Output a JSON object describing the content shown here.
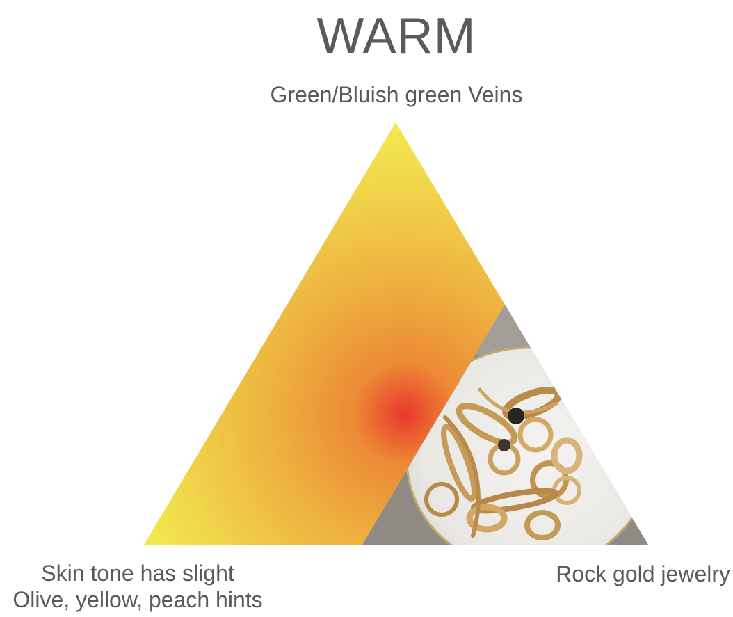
{
  "title": "WARM",
  "vertices": {
    "top": "Green/Bluish green Veins",
    "bottom_left": {
      "line1": "Skin tone has slight",
      "line2": "Olive, yellow, peach hints"
    },
    "bottom_right": "Rock gold jewelry"
  },
  "image": {
    "subject": "gold jewelry on white plate",
    "icon": "jewelry-photo-icon"
  },
  "colors": {
    "text": "#595959",
    "gradient_center": "#e8382c",
    "gradient_mid": "#eda03a",
    "gradient_outer": "#f4ff52"
  }
}
